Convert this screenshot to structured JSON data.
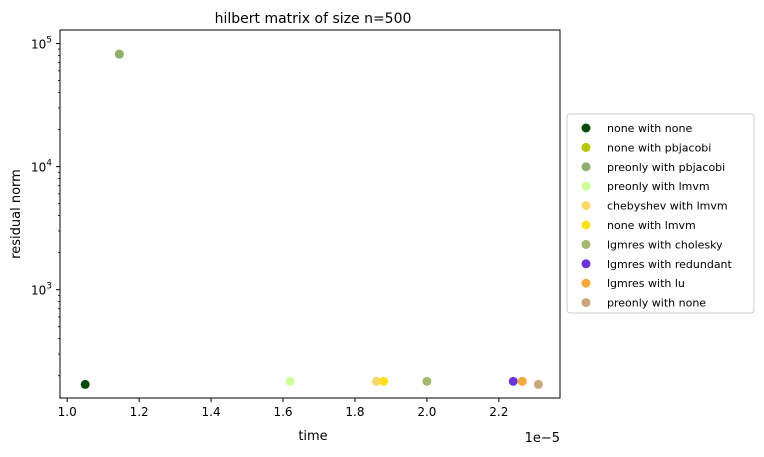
{
  "chart_data": {
    "type": "scatter",
    "title": "hilbert matrix of size n=500",
    "xlabel": "time",
    "ylabel": "residual norm",
    "x_offset_label": "1e−5",
    "xlim": [
      0.98,
      2.37
    ],
    "ylim_log10": [
      2.12,
      5.11
    ],
    "y_scale": "log",
    "x_ticks": [
      1.0,
      1.2,
      1.4,
      1.6,
      1.8,
      2.0,
      2.2
    ],
    "x_tick_labels": [
      "1.0",
      "1.2",
      "1.4",
      "1.6",
      "1.8",
      "2.0",
      "2.2"
    ],
    "y_ticks": [
      {
        "exp": 3,
        "base": "10",
        "sup": "3"
      },
      {
        "exp": 4,
        "base": "10",
        "sup": "4"
      },
      {
        "exp": 5,
        "base": "10",
        "sup": "5"
      }
    ],
    "grid": false,
    "legend_position": "right, outside plot",
    "series": [
      {
        "name": "none with none",
        "color": "#0a4a0a",
        "x": 1.05,
        "y": 170
      },
      {
        "name": "none with pbjacobi",
        "color": "#b5c900",
        "x": 1.145,
        "y": 82000
      },
      {
        "name": "preonly with pbjacobi",
        "color": "#8fb06f",
        "x": 1.145,
        "y": 82000
      },
      {
        "name": "preonly with lmvm",
        "color": "#ccff99",
        "x": 1.62,
        "y": 180
      },
      {
        "name": "chebyshev with lmvm",
        "color": "#f7d96a",
        "x": 1.86,
        "y": 180
      },
      {
        "name": "none with lmvm",
        "color": "#ffdf1a",
        "x": 1.88,
        "y": 180
      },
      {
        "name": "lgmres with cholesky",
        "color": "#a5b870",
        "x": 2.0,
        "y": 180
      },
      {
        "name": "lgmres with redundant",
        "color": "#6a34d6",
        "x": 2.24,
        "y": 180
      },
      {
        "name": "lgmres with lu",
        "color": "#f5a93b",
        "x": 2.265,
        "y": 180
      },
      {
        "name": "preonly with none",
        "color": "#c8a87a",
        "x": 2.31,
        "y": 170
      }
    ]
  }
}
